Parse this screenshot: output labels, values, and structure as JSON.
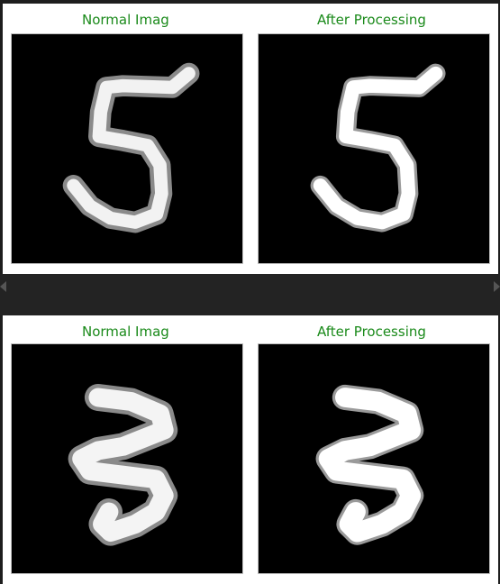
{
  "colors": {
    "title": "#1a8a1a",
    "background": "#1e1e1e",
    "panel": "#ffffff",
    "image_bg": "#000000"
  },
  "panels": [
    {
      "left_title": "Normal Imag",
      "right_title": "After Processing",
      "digit": "5"
    },
    {
      "left_title": "Normal Imag",
      "right_title": "After Processing",
      "digit": "3"
    }
  ],
  "scroll": {
    "left_icon": "scroll-left-arrow-icon",
    "right_icon": "scroll-right-arrow-icon"
  }
}
